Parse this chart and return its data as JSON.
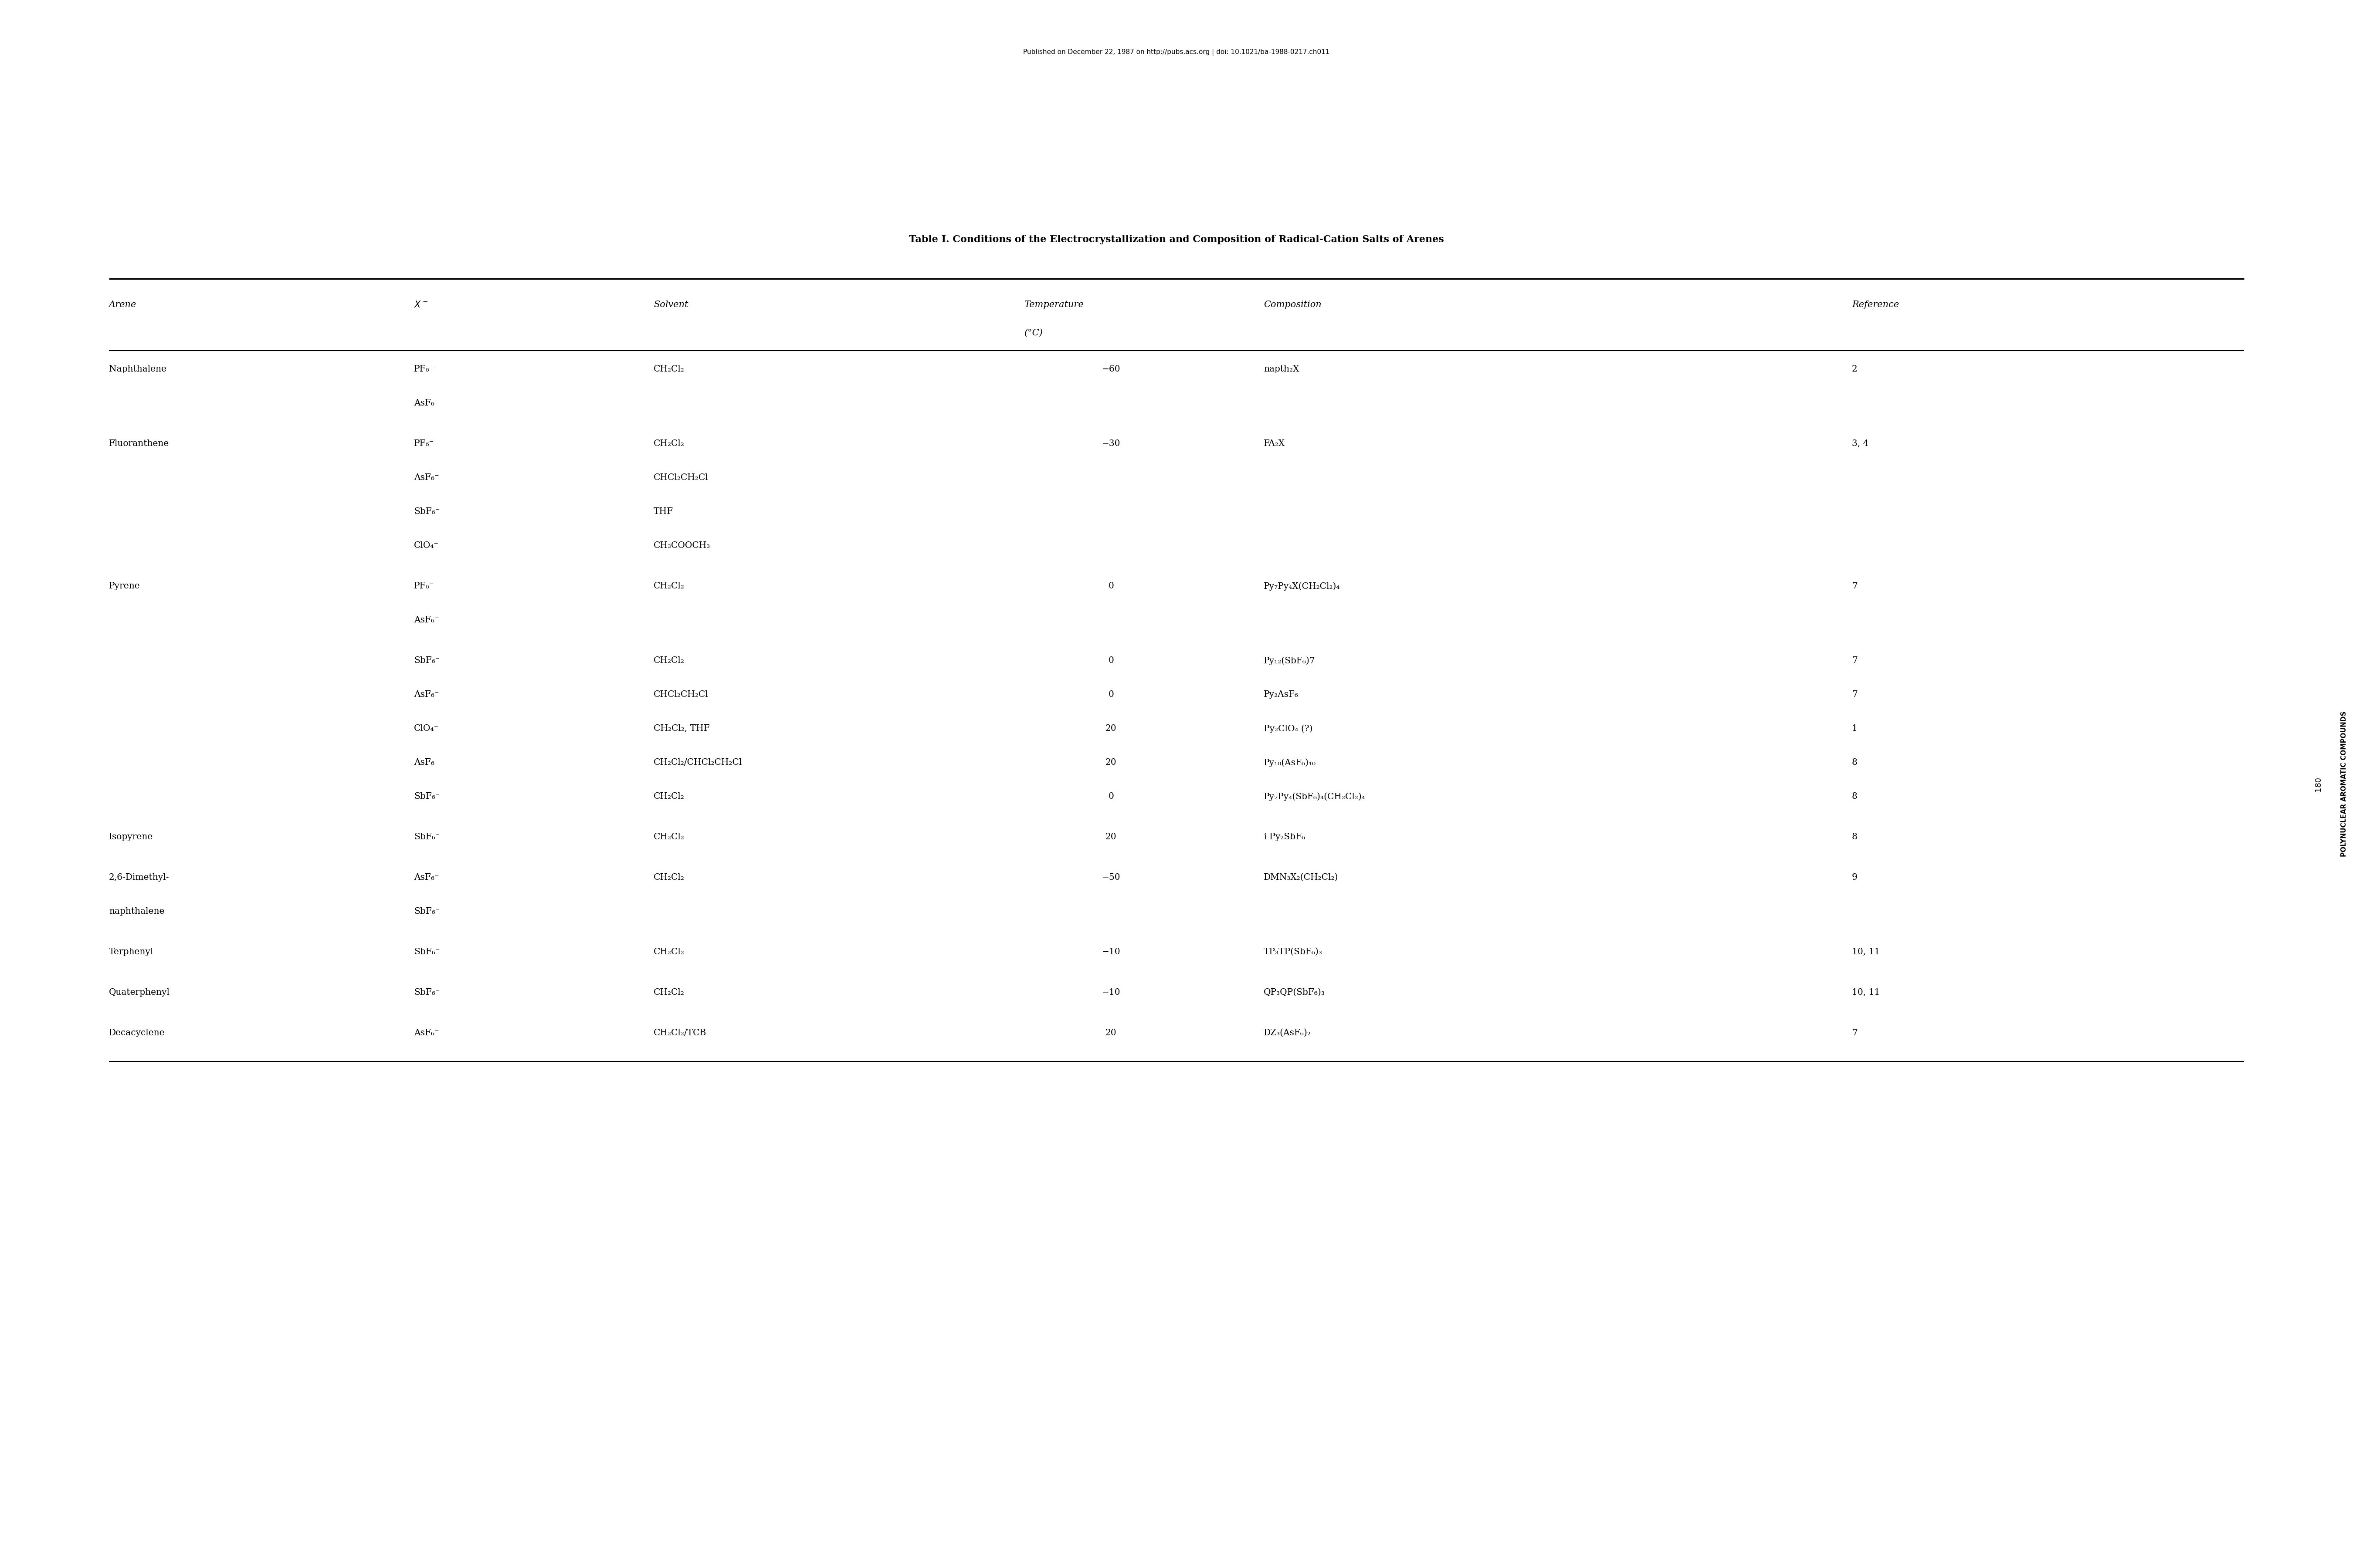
{
  "title": "Table I. Conditions of the Electrocrystallization and Composition of Radical-Cation Salts of Arenes",
  "header_note": "Published on December 22, 1987 on http://pubs.acs.org | doi: 10.1021/ba-1988-0217.ch011",
  "side_text": "POLYNUCLEAR AROMATIC COMPOUNDS",
  "page_number": "180",
  "col_headers": [
    "Arene",
    "X⁻",
    "Solvent",
    "Temperature\n(°C)",
    "Composition",
    "Reference"
  ],
  "rows": [
    [
      "Naphthalene",
      "PF₆⁻\nAsF₆⁻",
      "CH₂Cl₂",
      "−60",
      "napth₂X",
      "2"
    ],
    [
      "Fluoranthene",
      "PF₆⁻\nAsF₆⁻\nSbF₆⁻\nClO₄⁻",
      "CH₂Cl₂\nCHCl₂CH₂Cl\nTHF\nCH₃COOCH₃",
      "−30",
      "FA₂X",
      "3, 4"
    ],
    [
      "Pyrene",
      "PF₆⁻\nAsF₆⁻",
      "CH₂Cl₂",
      "0",
      "Py₇Py₄X(CH₂Cl₂)₄",
      "7"
    ],
    [
      "",
      "SbF₆⁻\nAsF₆⁻\nClO₄⁻\nAsF₆\nSbF₆⁻",
      "CH₂Cl₂\nCHCl₂CH₂Cl\nCH₂Cl₂, THF\nCH₂Cl₂/CHCl₂CH₂Cl\nCH₂Cl₂",
      "0\n0\n20\n20\n0",
      "Py₁₂(SbF₆)7\nPy₂AsF₆\nPy₂ClO₄ (?)\nPy₁₀(AsF₆)₁₀\nPy₇Py₄(SbF₆)₄(CH₂Cl₂)₄",
      "7\n7\n1\n8\n8"
    ],
    [
      "Isopyrene",
      "SbF₆⁻",
      "CH₂Cl₂",
      "20",
      "i-Py₂SbF₆",
      "8"
    ],
    [
      "2,6-Dimethyl-\nnaphthalene",
      "AsF₆⁻\nSbF₆⁻",
      "CH₂Cl₂",
      "−50",
      "DMN₃X₂(CH₂Cl₂)",
      "9"
    ],
    [
      "Terphenyl",
      "SbF₆⁻",
      "CH₂Cl₂",
      "−10",
      "TP₃TP(SbF₆)₃",
      "10, 11"
    ],
    [
      "Quaterphenyl",
      "SbF₆⁻",
      "CH₂Cl₂",
      "−10",
      "QP₃QP(SbF₆)₃",
      "10, 11"
    ],
    [
      "Decacyclene",
      "AsF₆⁻",
      "CH₂Cl₂/TCB",
      "20",
      "DZ₃(AsF₆)₂",
      "7"
    ]
  ],
  "background_color": "#ffffff",
  "text_color": "#000000",
  "font_size": 14,
  "title_font_size": 16
}
